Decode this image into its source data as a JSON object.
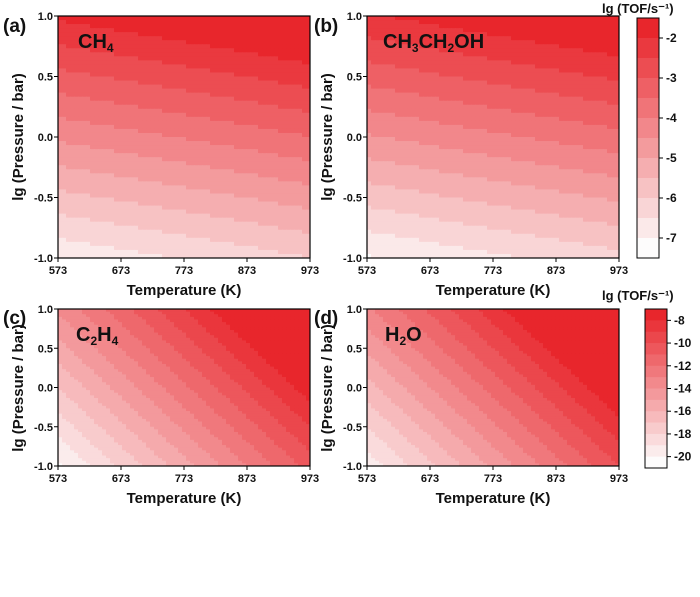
{
  "panels": [
    {
      "letter": "(a)",
      "species": {
        "base": "CH",
        "sub": "4",
        "tail": ""
      },
      "scale": "top",
      "field": {
        "type": "linear",
        "a": -6.9,
        "bT": 0.0022,
        "bP": 2.5
      }
    },
    {
      "letter": "(b)",
      "species": {
        "base": "CH",
        "sub": "3",
        "tail": "CH",
        "sub2": "2",
        "tail2": "OH"
      },
      "scale": "top",
      "field": {
        "type": "linear",
        "a": -7.05,
        "bT": 0.0022,
        "bP": 2.5
      }
    },
    {
      "letter": "(c)",
      "species": {
        "base": "C",
        "sub": "2",
        "tail": "H",
        "sub2": "4",
        "tail2": ""
      },
      "scale": "bottom",
      "field": {
        "type": "linear",
        "a": -20.2,
        "bT": 0.024,
        "bP": 3.2
      }
    },
    {
      "letter": "(d)",
      "species": {
        "base": "H",
        "sub": "2",
        "tail": "O"
      },
      "scale": "bottom",
      "field": {
        "type": "linear",
        "a": -19.6,
        "bT": 0.024,
        "bP": 3.2
      }
    }
  ],
  "axes": {
    "xlabel": "Temperature (K)",
    "ylabel": "lg (Pressure / bar)",
    "xticks": [
      "573",
      "673",
      "773",
      "873",
      "973"
    ],
    "yticks": [
      "1.0",
      "0.5",
      "0.0",
      "-0.5",
      "-1.0"
    ],
    "xlim": [
      573,
      973
    ],
    "ylim": [
      -1.0,
      1.0
    ]
  },
  "colorbars": {
    "top": {
      "title": "lg (TOF/s⁻¹)",
      "ticks": [
        "-2",
        "-3",
        "-4",
        "-5",
        "-6",
        "-7"
      ],
      "tick_values": [
        -2,
        -3,
        -4,
        -5,
        -6,
        -7
      ],
      "range": [
        -7.5,
        -1.5
      ],
      "levels": 12
    },
    "bottom": {
      "title": "lg (TOF/s⁻¹)",
      "ticks": [
        "-8",
        "-10",
        "-12",
        "-14",
        "-16",
        "-18",
        "-20"
      ],
      "tick_values": [
        -8,
        -10,
        -12,
        -14,
        -16,
        -18,
        -20
      ],
      "range": [
        -21,
        -7
      ],
      "levels": 14
    }
  },
  "colors": {
    "low": "#fdfcfc",
    "high": "#e8262c",
    "axis": "#000000"
  },
  "chart_data": {
    "type": "heatmap",
    "title": "",
    "xlabel": "Temperature (K)",
    "ylabel": "lg (Pressure / bar)",
    "x_ticks": [
      573,
      673,
      773,
      873,
      973
    ],
    "y_ticks": [
      -1.0,
      -0.5,
      0.0,
      0.5,
      1.0
    ],
    "series": [
      {
        "name": "CH4",
        "colorbar": "lg (TOF/s-1)",
        "corner_values": {
          "T573_P-1.0": -7.4,
          "T973_P-1.0": -6.5,
          "T573_P1.0": -2.4,
          "T973_P1.0": -1.6
        }
      },
      {
        "name": "CH3CH2OH",
        "colorbar": "lg (TOF/s-1)",
        "corner_values": {
          "T573_P-1.0": -7.6,
          "T973_P-1.0": -6.7,
          "T573_P1.0": -2.6,
          "T973_P1.0": -1.7
        }
      },
      {
        "name": "C2H4",
        "colorbar": "lg (TOF/s-1)",
        "corner_values": {
          "T573_P-1.0": -20.4,
          "T973_P-1.0": -10.8,
          "T573_P1.0": -14.0,
          "T973_P1.0": -7.3
        }
      },
      {
        "name": "H2O",
        "colorbar": "lg (TOF/s-1)",
        "corner_values": {
          "T573_P-1.0": -19.8,
          "T973_P-1.0": -10.2,
          "T573_P1.0": -13.4,
          "T973_P1.0": -7.0
        }
      }
    ]
  }
}
